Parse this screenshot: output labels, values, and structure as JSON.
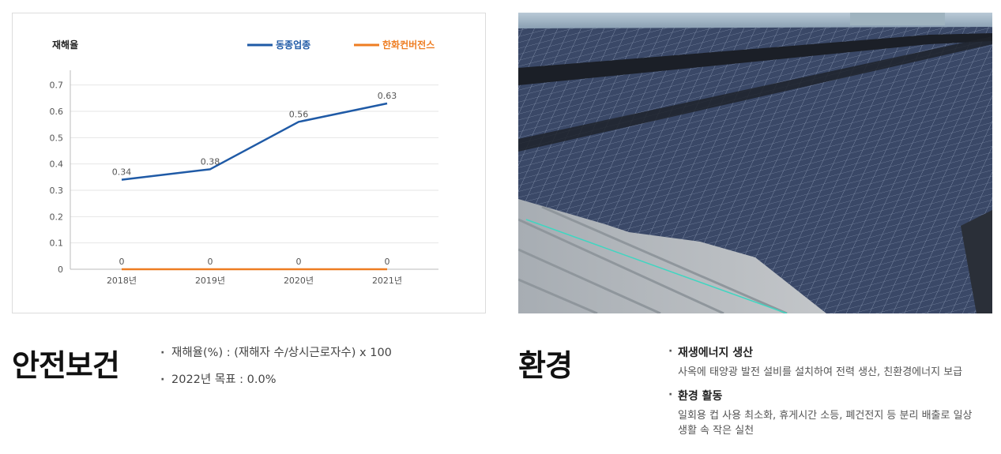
{
  "chart_data": {
    "type": "line",
    "title": "재해율",
    "categories": [
      "2018년",
      "2019년",
      "2020년",
      "2021년"
    ],
    "series": [
      {
        "name": "동종업종",
        "values": [
          0.34,
          0.38,
          0.56,
          0.63
        ],
        "color": "#1f5aa6"
      },
      {
        "name": "한화컨버전스",
        "values": [
          0,
          0,
          0,
          0
        ],
        "color": "#ee7d22"
      }
    ],
    "yticks": [
      "0",
      "0.1",
      "0.2",
      "0.3",
      "0.4",
      "0.5",
      "0.6",
      "0.7"
    ],
    "ylim": [
      0,
      0.75
    ],
    "grid": true,
    "legend_position": "top-right"
  },
  "safety": {
    "title": "안전보건",
    "bullets": [
      "재해율(%) : (재해자 수/상시근로자수) x 100",
      "2022년 목표 : 0.0%"
    ]
  },
  "environment": {
    "title": "환경",
    "items": [
      {
        "heading": "재생에너지 생산",
        "description": "사옥에 태양광 발전 설비를 설치하여 전력 생산, 친환경에너지 보급"
      },
      {
        "heading": "환경 활동",
        "description": "일회용 컵 사용 최소화, 휴게시간 소등, 폐건전지 등 분리 배출로 일상생활 속 작은 실천"
      }
    ]
  },
  "photo": {
    "icon": "solar-panel-rooftop-photo"
  }
}
